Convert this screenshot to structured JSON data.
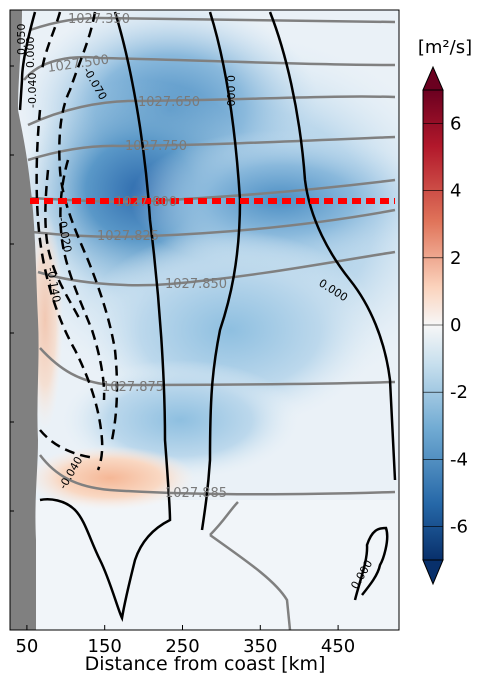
{
  "chart_data": {
    "type": "contour",
    "xlabel": "Distance from coast [km]",
    "ylabel": "",
    "x_ticks": [
      50,
      150,
      250,
      350,
      450
    ],
    "xlim": [
      0,
      500
    ],
    "colorbar": {
      "unit": "[m²/s]",
      "ticks": [
        6,
        4,
        2,
        0,
        -2,
        -4,
        -6
      ],
      "range": [
        -7,
        7
      ],
      "colormap": "RdBu_r",
      "extend": "both"
    },
    "filled_field": "diffusivity",
    "black_contour_labels": [
      "0.050",
      "-0.040",
      "0.000",
      "0.000",
      "-0.070",
      "0.000",
      "-0.020",
      "-0.140",
      "0.000",
      "-0.040",
      "0.000"
    ],
    "density_contour_labels": [
      "1027.350",
      "1027.500",
      "1027.650",
      "1027.750",
      "1027.800",
      "1027.825",
      "1027.850",
      "1027.875",
      "1027.885"
    ],
    "highlight_line": {
      "style": "dashed",
      "color": "#ff0000",
      "x_range": [
        30,
        500
      ]
    },
    "land_mask_color": "#808080"
  }
}
